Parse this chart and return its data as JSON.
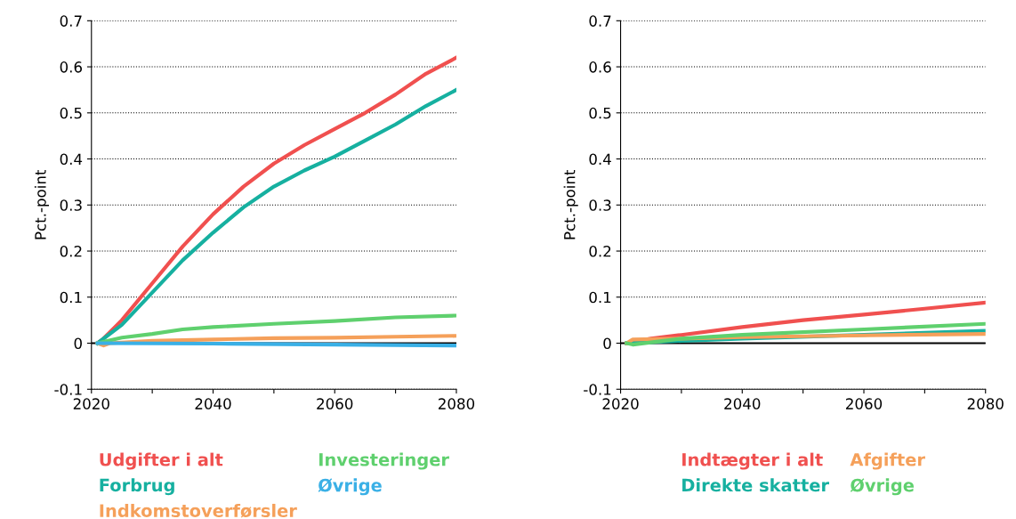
{
  "chart_data": [
    {
      "type": "line",
      "ylabel": "Pct.-point",
      "xlim": [
        2020,
        2080
      ],
      "xticks": [
        2020,
        {
          "value": 2030,
          "label": null
        },
        2040,
        {
          "value": 2050,
          "label": null
        },
        2060,
        {
          "value": 2070,
          "label": null
        },
        2080
      ],
      "ylim": [
        -0.1,
        0.7
      ],
      "yticks": [
        -0.1,
        0,
        0.1,
        0.2,
        0.3,
        0.4,
        0.5,
        0.6,
        0.7
      ],
      "grid": "y",
      "legend": "bottom",
      "ref_lines": [
        {
          "axis": "y",
          "value": 0,
          "color": "#000000"
        }
      ],
      "series": [
        {
          "name": "Udgifter i alt",
          "color": "#f0504f",
          "x": [
            2021,
            2022,
            2025,
            2030,
            2035,
            2040,
            2045,
            2050,
            2055,
            2060,
            2065,
            2070,
            2075,
            2080
          ],
          "values": [
            0,
            0.01,
            0.05,
            0.13,
            0.21,
            0.28,
            0.34,
            0.39,
            0.43,
            0.465,
            0.5,
            0.54,
            0.585,
            0.62
          ]
        },
        {
          "name": "Forbrug",
          "color": "#16b0a0",
          "x": [
            2021,
            2025,
            2030,
            2035,
            2040,
            2045,
            2050,
            2055,
            2060,
            2065,
            2070,
            2075,
            2080
          ],
          "values": [
            0,
            0.04,
            0.11,
            0.18,
            0.24,
            0.295,
            0.34,
            0.375,
            0.405,
            0.44,
            0.475,
            0.515,
            0.55
          ]
        },
        {
          "name": "Indkomstoverførsler",
          "color": "#f5a05a",
          "x": [
            2021,
            2022,
            2023,
            2030,
            2040,
            2050,
            2060,
            2070,
            2080
          ],
          "values": [
            0,
            -0.005,
            0,
            0.005,
            0.008,
            0.011,
            0.012,
            0.014,
            0.016
          ]
        },
        {
          "name": "Investeringer",
          "color": "#5fd06e",
          "x": [
            2021,
            2025,
            2030,
            2035,
            2040,
            2050,
            2060,
            2070,
            2080
          ],
          "values": [
            0,
            0.012,
            0.02,
            0.03,
            0.035,
            0.042,
            0.048,
            0.056,
            0.06
          ]
        },
        {
          "name": "Øvrige",
          "color": "#3ab0e6",
          "x": [
            2021,
            2040,
            2060,
            2080
          ],
          "values": [
            0,
            -0.001,
            -0.003,
            -0.005
          ]
        }
      ]
    },
    {
      "type": "line",
      "ylabel": "Pct.-point",
      "xlim": [
        2020,
        2080
      ],
      "xticks": [
        2020,
        {
          "value": 2030,
          "label": null
        },
        2040,
        {
          "value": 2050,
          "label": null
        },
        2060,
        {
          "value": 2070,
          "label": null
        },
        2080
      ],
      "ylim": [
        -0.1,
        0.7
      ],
      "yticks": [
        -0.1,
        0,
        0.1,
        0.2,
        0.3,
        0.4,
        0.5,
        0.6,
        0.7
      ],
      "grid": "y",
      "legend": "bottom",
      "ref_lines": [
        {
          "axis": "y",
          "value": 0,
          "color": "#000000"
        }
      ],
      "series": [
        {
          "name": "Indtægter i alt",
          "color": "#f0504f",
          "x": [
            2021,
            2025,
            2030,
            2040,
            2050,
            2060,
            2070,
            2080
          ],
          "values": [
            0,
            0.01,
            0.018,
            0.035,
            0.05,
            0.062,
            0.075,
            0.088
          ]
        },
        {
          "name": "Direkte skatter",
          "color": "#16b0a0",
          "x": [
            2021,
            2030,
            2040,
            2060,
            2080
          ],
          "values": [
            0,
            0.005,
            0.01,
            0.018,
            0.027
          ]
        },
        {
          "name": "Afgifter",
          "color": "#f5a05a",
          "x": [
            2021,
            2022,
            2030,
            2040,
            2060,
            2080
          ],
          "values": [
            0,
            0.008,
            0.01,
            0.013,
            0.017,
            0.02
          ]
        },
        {
          "name": "Øvrige",
          "color": "#5fd06e",
          "x": [
            2021,
            2022,
            2030,
            2040,
            2060,
            2080
          ],
          "values": [
            0,
            -0.003,
            0.01,
            0.018,
            0.03,
            0.042
          ]
        }
      ]
    }
  ]
}
